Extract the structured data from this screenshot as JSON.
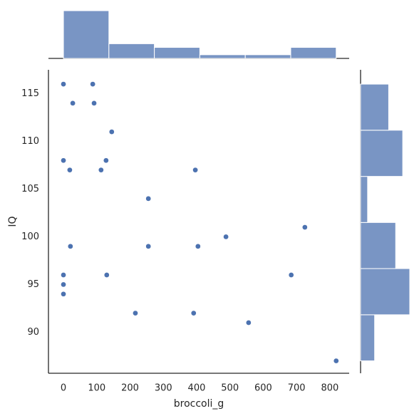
{
  "chart_data": {
    "type": "scatter",
    "xlabel": "broccoli_g",
    "ylabel": "IQ",
    "color": "#4c72b0",
    "x": [
      0,
      88,
      28,
      92,
      145,
      0,
      128,
      19,
      113,
      396,
      255,
      488,
      725,
      21,
      255,
      404,
      0,
      130,
      684,
      0,
      0,
      216,
      391,
      556,
      819
    ],
    "y": [
      116,
      116,
      114,
      114,
      111,
      108,
      108,
      107,
      107,
      107,
      104,
      100,
      101,
      99,
      99,
      99,
      96,
      96,
      96,
      95,
      94,
      92,
      92,
      91,
      87
    ],
    "xlim": [
      -45,
      858
    ],
    "ylim": [
      85.7,
      117.5
    ],
    "xticks": [
      0,
      100,
      200,
      300,
      400,
      500,
      600,
      700,
      800
    ],
    "yticks": [
      90,
      95,
      100,
      105,
      110,
      115
    ],
    "x_hist": {
      "bins": [
        0,
        136.5,
        273,
        409.5,
        546,
        682.5,
        819
      ],
      "counts": [
        13,
        4,
        3,
        1,
        1,
        3
      ]
    },
    "y_hist": {
      "bins": [
        87,
        91.83,
        96.67,
        101.5,
        106.33,
        111.17,
        116
      ],
      "counts": [
        2,
        7,
        5,
        1,
        6,
        4
      ]
    }
  }
}
